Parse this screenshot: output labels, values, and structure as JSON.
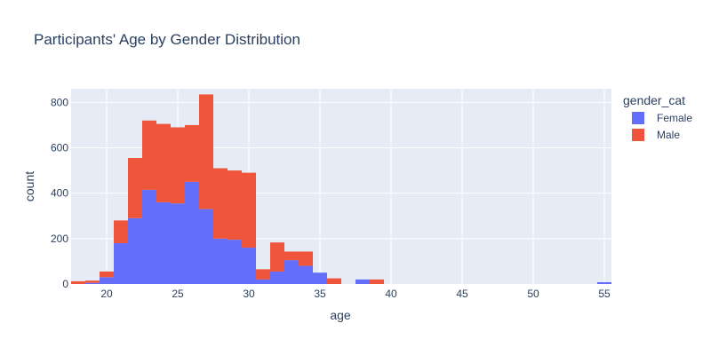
{
  "chart_data": {
    "type": "bar",
    "barmode": "stack",
    "title": "Participants' Age by Gender Distribution",
    "xlabel": "age",
    "ylabel": "count",
    "xlim": [
      17.5,
      55.5
    ],
    "ylim": [
      0,
      860
    ],
    "xticks": [
      20,
      25,
      30,
      35,
      40,
      45,
      50,
      55
    ],
    "yticks": [
      0,
      200,
      400,
      600,
      800
    ],
    "grid": true,
    "legend_title": "gender_cat",
    "legend_position": "top-right",
    "bin_width": 1,
    "x": [
      17.5,
      18.5,
      19.5,
      20.5,
      21.5,
      22.5,
      23.5,
      24.5,
      25.5,
      26.5,
      27.5,
      28.5,
      29.5,
      30.5,
      31.5,
      32.5,
      33.5,
      34.5,
      35.5,
      36.5,
      37.5,
      38.5,
      39.5,
      40.5,
      41.5,
      42.5,
      43.5,
      44.5,
      45.5,
      46.5,
      47.5,
      48.5,
      49.5,
      50.5,
      51.5,
      52.5,
      53.5,
      54.5
    ],
    "series": [
      {
        "name": "Female",
        "color": "#636efa",
        "values": [
          0,
          5,
          30,
          180,
          290,
          415,
          360,
          355,
          450,
          330,
          200,
          195,
          160,
          20,
          55,
          105,
          80,
          50,
          0,
          0,
          20,
          0,
          0,
          0,
          0,
          0,
          0,
          0,
          0,
          0,
          0,
          0,
          0,
          0,
          0,
          0,
          0,
          8
        ]
      },
      {
        "name": "Male",
        "color": "#ef553b",
        "values": [
          12,
          10,
          25,
          100,
          265,
          305,
          345,
          335,
          250,
          505,
          310,
          305,
          330,
          45,
          128,
          38,
          63,
          0,
          25,
          0,
          0,
          20,
          0,
          0,
          0,
          0,
          0,
          0,
          0,
          0,
          0,
          0,
          0,
          0,
          0,
          0,
          0,
          0
        ]
      }
    ]
  }
}
